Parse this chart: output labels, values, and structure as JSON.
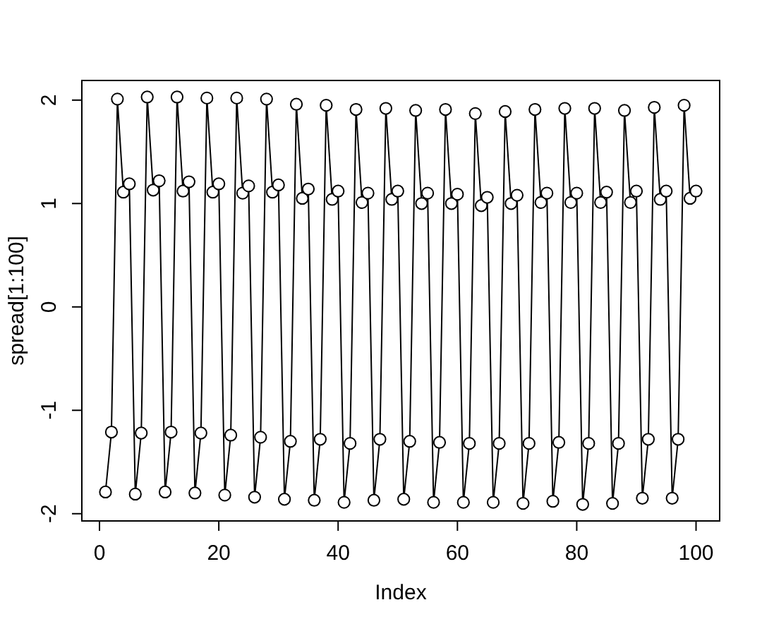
{
  "chart_data": {
    "type": "line",
    "xlabel": "Index",
    "ylabel": "spread[1:100]",
    "x": [
      1,
      2,
      3,
      4,
      5,
      6,
      7,
      8,
      9,
      10,
      11,
      12,
      13,
      14,
      15,
      16,
      17,
      18,
      19,
      20,
      21,
      22,
      23,
      24,
      25,
      26,
      27,
      28,
      29,
      30,
      31,
      32,
      33,
      34,
      35,
      36,
      37,
      38,
      39,
      40,
      41,
      42,
      43,
      44,
      45,
      46,
      47,
      48,
      49,
      50,
      51,
      52,
      53,
      54,
      55,
      56,
      57,
      58,
      59,
      60,
      61,
      62,
      63,
      64,
      65,
      66,
      67,
      68,
      69,
      70,
      71,
      72,
      73,
      74,
      75,
      76,
      77,
      78,
      79,
      80,
      81,
      82,
      83,
      84,
      85,
      86,
      87,
      88,
      89,
      90,
      91,
      92,
      93,
      94,
      95,
      96,
      97,
      98,
      99,
      100
    ],
    "series": [
      {
        "color": "#000000",
        "values": [
          -1.79,
          -1.21,
          2.01,
          1.11,
          1.19,
          -1.81,
          -1.22,
          2.03,
          1.13,
          1.22,
          -1.79,
          -1.21,
          2.03,
          1.12,
          1.21,
          -1.8,
          -1.22,
          2.02,
          1.11,
          1.19,
          -1.82,
          -1.24,
          2.02,
          1.1,
          1.17,
          -1.84,
          -1.26,
          2.01,
          1.11,
          1.18,
          -1.86,
          -1.3,
          1.96,
          1.05,
          1.14,
          -1.87,
          -1.28,
          1.95,
          1.04,
          1.12,
          -1.89,
          -1.32,
          1.91,
          1.01,
          1.1,
          -1.87,
          -1.28,
          1.92,
          1.04,
          1.12,
          -1.86,
          -1.3,
          1.9,
          1.0,
          1.1,
          -1.89,
          -1.31,
          1.91,
          1.0,
          1.09,
          -1.89,
          -1.32,
          1.87,
          0.98,
          1.06,
          -1.89,
          -1.32,
          1.89,
          1.0,
          1.08,
          -1.9,
          -1.32,
          1.91,
          1.01,
          1.1,
          -1.88,
          -1.31,
          1.92,
          1.01,
          1.1,
          -1.91,
          -1.32,
          1.92,
          1.01,
          1.11,
          -1.9,
          -1.32,
          1.9,
          1.01,
          1.12,
          -1.85,
          -1.28,
          1.93,
          1.04,
          1.12,
          -1.85,
          -1.28,
          1.95,
          1.05,
          1.12
        ]
      }
    ],
    "xlim": [
      -2.96,
      103.96
    ],
    "ylim": [
      -2.07,
      2.19
    ],
    "xticks": [
      0,
      20,
      40,
      60,
      80,
      100
    ],
    "yticks": [
      -2,
      -1,
      0,
      1,
      2
    ],
    "marker": "circle",
    "line_style": "solid"
  }
}
